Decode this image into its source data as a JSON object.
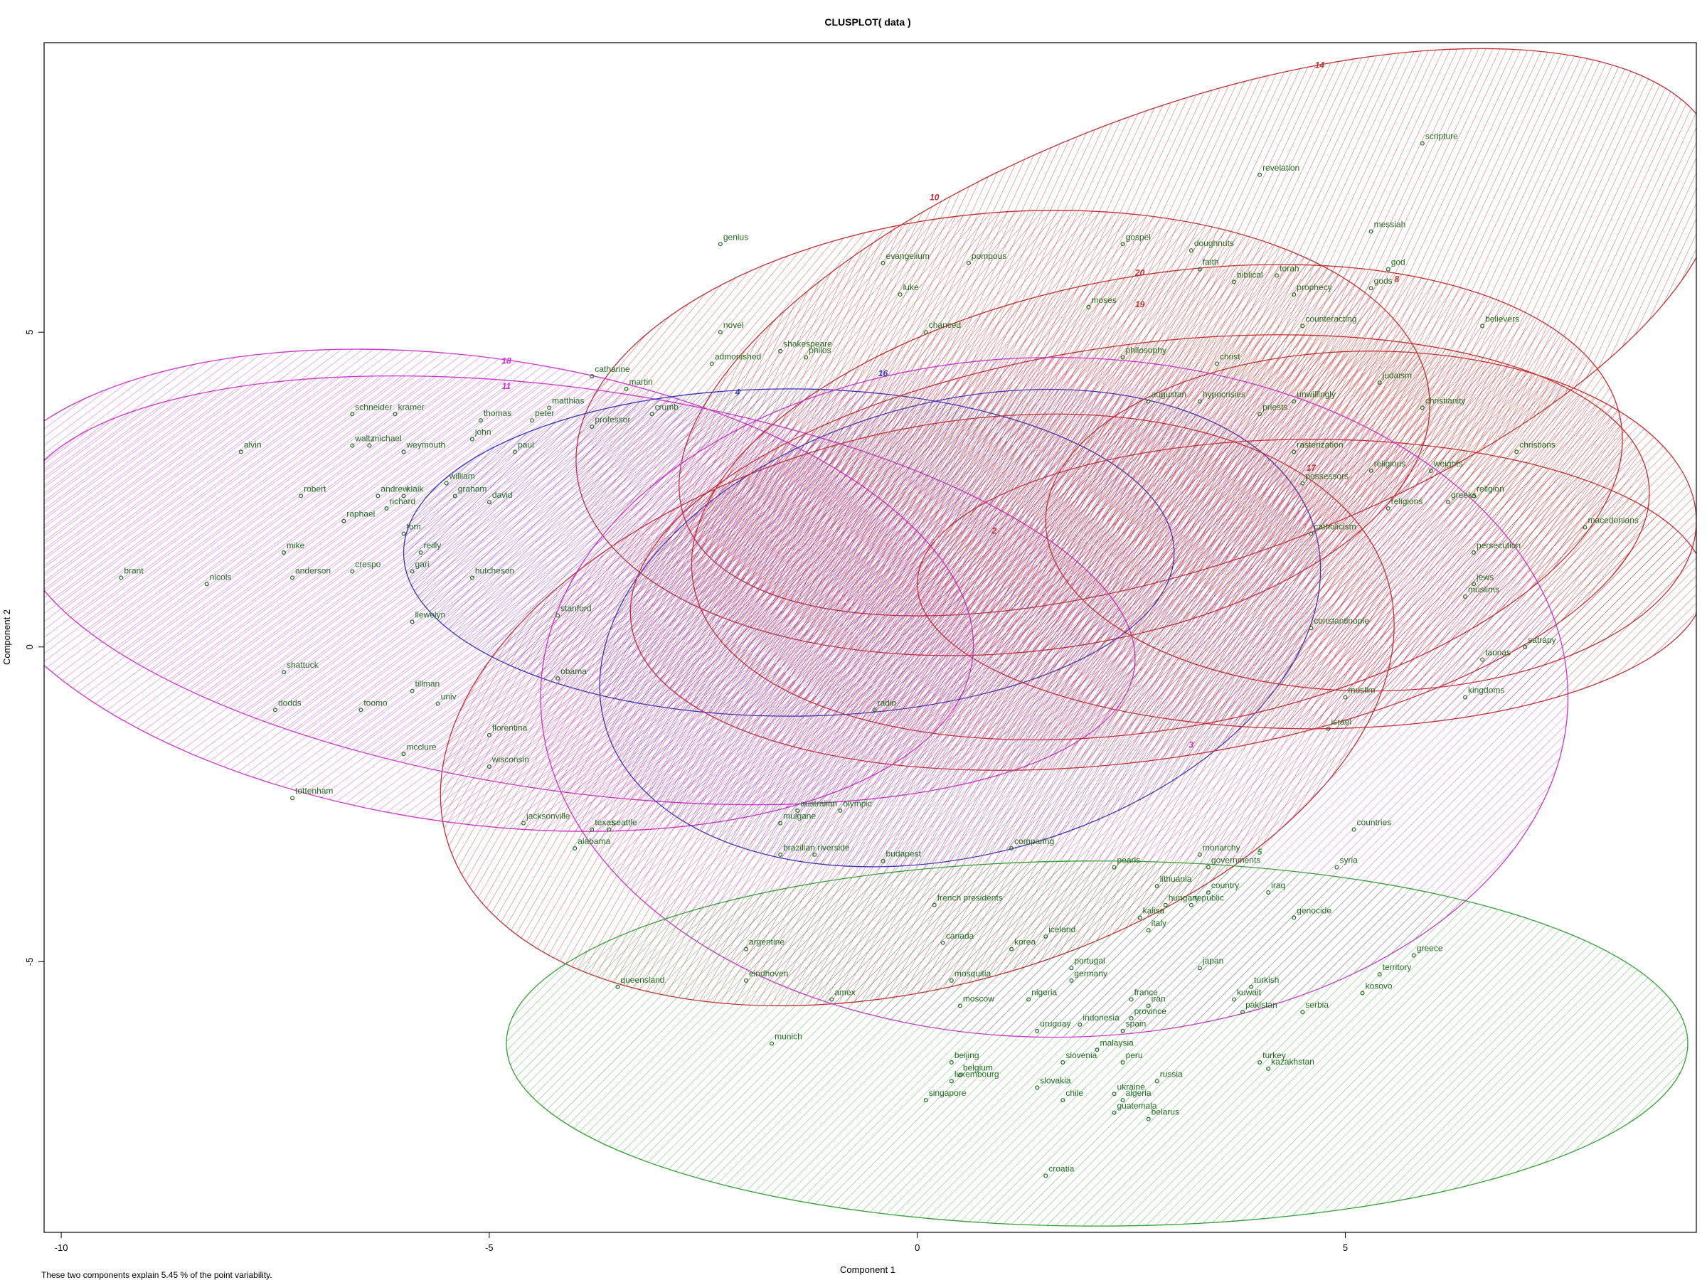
{
  "chart_data": {
    "type": "scatter",
    "title": "CLUSPLOT( data )",
    "xlabel": "Component 1",
    "ylabel": "Component 2",
    "footnote": "These two components explain 5.45 % of the point variability.",
    "xlim": [
      -10.2,
      9.1
    ],
    "ylim": [
      -9.3,
      9.6
    ],
    "xticks": [
      -10,
      -5,
      0,
      5
    ],
    "yticks": [
      -5,
      0,
      5
    ],
    "grid": false,
    "legend": "none",
    "colors": {
      "point": "#1f6b1f",
      "magenta": "#cc33cc",
      "red": "#c03030",
      "blue": "#3333bb",
      "green": "#33a033"
    },
    "clusters": [
      {
        "label": "14",
        "color": "#c03030",
        "cx": 3.3,
        "cy": 5.0,
        "rx": 6.4,
        "ry": 3.6,
        "angle": 20,
        "label_x": 4.7,
        "label_y": 9.2
      },
      {
        "label": "10",
        "color": "#c03030",
        "cx": 1.0,
        "cy": 3.4,
        "rx": 5.0,
        "ry": 3.5,
        "angle": 5,
        "label_x": 0.2,
        "label_y": 7.1
      },
      {
        "label": "18",
        "color": "#cc33cc",
        "cx": -5.2,
        "cy": 0.9,
        "rx": 5.9,
        "ry": 3.7,
        "angle": -8,
        "label_x": -4.8,
        "label_y": 4.5
      },
      {
        "label": "11",
        "color": "#cc33cc",
        "cx": -4.0,
        "cy": 0.9,
        "rx": 6.6,
        "ry": 3.2,
        "angle": -8,
        "label_x": -4.8,
        "label_y": 4.1
      },
      {
        "label": "4",
        "color": "#3333bb",
        "cx": -1.5,
        "cy": 1.5,
        "rx": 4.5,
        "ry": 2.6,
        "angle": 0,
        "label_x": -2.1,
        "label_y": 4.0
      },
      {
        "label": "16",
        "color": "#3333bb",
        "cx": 0.5,
        "cy": 0.3,
        "rx": 4.3,
        "ry": 3.6,
        "angle": 15,
        "label_x": -0.4,
        "label_y": 4.3
      },
      {
        "label": "20",
        "color": "#c03030",
        "cx": 2.8,
        "cy": 2.3,
        "rx": 5.5,
        "ry": 3.6,
        "angle": 10,
        "label_x": 2.6,
        "label_y": 5.9
      },
      {
        "label": "19",
        "color": "#c03030",
        "cx": 2.6,
        "cy": 1.5,
        "rx": 6.0,
        "ry": 3.3,
        "angle": 8,
        "label_x": 2.6,
        "label_y": 5.4
      },
      {
        "label": "8",
        "color": "#c03030",
        "cx": 5.3,
        "cy": 2.0,
        "rx": 3.8,
        "ry": 2.7,
        "angle": 0,
        "label_x": 5.6,
        "label_y": 5.8
      },
      {
        "label": "17",
        "color": "#c03030",
        "cx": 4.6,
        "cy": 1.0,
        "rx": 4.6,
        "ry": 2.3,
        "angle": 0,
        "label_x": 4.6,
        "label_y": 2.8
      },
      {
        "label": "2",
        "color": "#c03030",
        "cx": 0.0,
        "cy": -1.0,
        "rx": 5.7,
        "ry": 4.4,
        "angle": 15,
        "label_x": 0.9,
        "label_y": 1.8
      },
      {
        "label": "3",
        "color": "#cc33cc",
        "cx": 1.6,
        "cy": -0.8,
        "rx": 6.0,
        "ry": 5.4,
        "angle": 0,
        "label_x": 3.2,
        "label_y": -1.6
      },
      {
        "label": "5",
        "color": "#33a033",
        "cx": 2.1,
        "cy": -6.3,
        "rx": 6.9,
        "ry": 2.9,
        "angle": 0,
        "label_x": 4.0,
        "label_y": -3.3
      }
    ],
    "points": [
      {
        "label": "scripture",
        "x": 5.9,
        "y": 8.0
      },
      {
        "label": "revelation",
        "x": 4.0,
        "y": 7.5
      },
      {
        "label": "messiah",
        "x": 5.3,
        "y": 6.6
      },
      {
        "label": "god",
        "x": 5.5,
        "y": 6.0
      },
      {
        "label": "gods",
        "x": 5.3,
        "y": 5.7
      },
      {
        "label": "torah",
        "x": 4.2,
        "y": 5.9
      },
      {
        "label": "prophecy",
        "x": 4.4,
        "y": 5.6
      },
      {
        "label": "doughnuts",
        "x": 3.2,
        "y": 6.3
      },
      {
        "label": "faith",
        "x": 3.3,
        "y": 6.0
      },
      {
        "label": "biblical",
        "x": 3.7,
        "y": 5.8
      },
      {
        "label": "gospel",
        "x": 2.4,
        "y": 6.4
      },
      {
        "label": "genius",
        "x": -2.3,
        "y": 6.4
      },
      {
        "label": "evangelium",
        "x": -0.4,
        "y": 6.1
      },
      {
        "label": "pompous",
        "x": 0.6,
        "y": 6.1
      },
      {
        "label": "luke",
        "x": -0.2,
        "y": 5.6
      },
      {
        "label": "moses",
        "x": 2.0,
        "y": 5.4
      },
      {
        "label": "believers",
        "x": 6.6,
        "y": 5.1
      },
      {
        "label": "novel",
        "x": -2.3,
        "y": 5.0
      },
      {
        "label": "shakespeare",
        "x": -1.6,
        "y": 4.7
      },
      {
        "label": "admonished",
        "x": -2.4,
        "y": 4.5
      },
      {
        "label": "philos",
        "x": -1.3,
        "y": 4.6
      },
      {
        "label": "chanced",
        "x": 0.1,
        "y": 5.0
      },
      {
        "label": "counteracting",
        "x": 4.5,
        "y": 5.1
      },
      {
        "label": "christ",
        "x": 3.5,
        "y": 4.5
      },
      {
        "label": "philosophy",
        "x": 2.4,
        "y": 4.6
      },
      {
        "label": "judaism",
        "x": 5.4,
        "y": 4.2
      },
      {
        "label": "christianity",
        "x": 5.9,
        "y": 3.8
      },
      {
        "label": "unwillingly",
        "x": 4.4,
        "y": 3.9
      },
      {
        "label": "priests",
        "x": 4.0,
        "y": 3.7
      },
      {
        "label": "hypocrisies",
        "x": 3.3,
        "y": 3.9
      },
      {
        "label": "augustan",
        "x": 2.7,
        "y": 3.9
      },
      {
        "label": "catharine",
        "x": -3.8,
        "y": 4.3
      },
      {
        "label": "martin",
        "x": -3.4,
        "y": 4.1
      },
      {
        "label": "matthias",
        "x": -4.3,
        "y": 3.8
      },
      {
        "label": "schneider",
        "x": -6.6,
        "y": 3.7
      },
      {
        "label": "kramer",
        "x": -6.1,
        "y": 3.7
      },
      {
        "label": "thomas",
        "x": -5.1,
        "y": 3.6
      },
      {
        "label": "peter",
        "x": -4.5,
        "y": 3.6
      },
      {
        "label": "professor",
        "x": -3.8,
        "y": 3.5
      },
      {
        "label": "crumb",
        "x": -3.1,
        "y": 3.7
      },
      {
        "label": "john",
        "x": -5.2,
        "y": 3.3
      },
      {
        "label": "michael",
        "x": -6.4,
        "y": 3.2
      },
      {
        "label": "waltz",
        "x": -6.6,
        "y": 3.2
      },
      {
        "label": "weymouth",
        "x": -6.0,
        "y": 3.1
      },
      {
        "label": "alvin",
        "x": -7.9,
        "y": 3.1
      },
      {
        "label": "paul",
        "x": -4.7,
        "y": 3.1
      },
      {
        "label": "rasterization",
        "x": 4.4,
        "y": 3.1
      },
      {
        "label": "possessors",
        "x": 4.5,
        "y": 2.6
      },
      {
        "label": "religious",
        "x": 5.3,
        "y": 2.8
      },
      {
        "label": "weights",
        "x": 6.0,
        "y": 2.8
      },
      {
        "label": "christians",
        "x": 7.0,
        "y": 3.1
      },
      {
        "label": "religion",
        "x": 6.5,
        "y": 2.4
      },
      {
        "label": "greeks",
        "x": 6.2,
        "y": 2.3
      },
      {
        "label": "religions",
        "x": 5.5,
        "y": 2.2
      },
      {
        "label": "macedonians",
        "x": 7.8,
        "y": 1.9
      },
      {
        "label": "persecution",
        "x": 6.5,
        "y": 1.5
      },
      {
        "label": "jews",
        "x": 6.5,
        "y": 1.0
      },
      {
        "label": "muslims",
        "x": 6.4,
        "y": 0.8
      },
      {
        "label": "catholicism",
        "x": 4.6,
        "y": 1.8
      },
      {
        "label": "constantinople",
        "x": 4.6,
        "y": 0.3
      },
      {
        "label": "satrapy",
        "x": 7.1,
        "y": 0.0
      },
      {
        "label": "taunas",
        "x": 6.6,
        "y": -0.2
      },
      {
        "label": "kingdoms",
        "x": 6.4,
        "y": -0.8
      },
      {
        "label": "muslim",
        "x": 5.0,
        "y": -0.8
      },
      {
        "label": "israel",
        "x": 4.8,
        "y": -1.3
      },
      {
        "label": "robert",
        "x": -7.2,
        "y": 2.4
      },
      {
        "label": "andrew",
        "x": -6.3,
        "y": 2.4
      },
      {
        "label": "klaik",
        "x": -6.0,
        "y": 2.4
      },
      {
        "label": "william",
        "x": -5.5,
        "y": 2.6
      },
      {
        "label": "graham",
        "x": -5.4,
        "y": 2.4
      },
      {
        "label": "david",
        "x": -5.0,
        "y": 2.3
      },
      {
        "label": "richard",
        "x": -6.2,
        "y": 2.2
      },
      {
        "label": "raphael",
        "x": -6.7,
        "y": 2.0
      },
      {
        "label": "tom",
        "x": -6.0,
        "y": 1.8
      },
      {
        "label": "nicols",
        "x": -8.3,
        "y": 1.0
      },
      {
        "label": "brant",
        "x": -9.3,
        "y": 1.1
      },
      {
        "label": "mike",
        "x": -7.4,
        "y": 1.5
      },
      {
        "label": "anderson",
        "x": -7.3,
        "y": 1.1
      },
      {
        "label": "crespo",
        "x": -6.6,
        "y": 1.2
      },
      {
        "label": "gari",
        "x": -5.9,
        "y": 1.2
      },
      {
        "label": "reilly",
        "x": -5.8,
        "y": 1.5
      },
      {
        "label": "hutcheson",
        "x": -5.2,
        "y": 1.1
      },
      {
        "label": "llewelyn",
        "x": -5.9,
        "y": 0.4
      },
      {
        "label": "stanford",
        "x": -4.2,
        "y": 0.5
      },
      {
        "label": "shattuck",
        "x": -7.4,
        "y": -0.4
      },
      {
        "label": "dodds",
        "x": -7.5,
        "y": -1.0
      },
      {
        "label": "tillman",
        "x": -5.9,
        "y": -0.7
      },
      {
        "label": "toomo",
        "x": -6.5,
        "y": -1.0
      },
      {
        "label": "univ",
        "x": -5.6,
        "y": -0.9
      },
      {
        "label": "mcclure",
        "x": -6.0,
        "y": -1.7
      },
      {
        "label": "florentina",
        "x": -5.0,
        "y": -1.4
      },
      {
        "label": "wisconsin",
        "x": -5.0,
        "y": -1.9
      },
      {
        "label": "tottenham",
        "x": -7.3,
        "y": -2.4
      },
      {
        "label": "jacksonville",
        "x": -4.6,
        "y": -2.8
      },
      {
        "label": "queensland",
        "x": -3.5,
        "y": -5.4
      },
      {
        "label": "argentine",
        "x": -2.0,
        "y": -4.8
      },
      {
        "label": "eindhoven",
        "x": -2.0,
        "y": -5.3
      },
      {
        "label": "amex",
        "x": -1.0,
        "y": -5.6
      },
      {
        "label": "munich",
        "x": -1.7,
        "y": -6.3
      },
      {
        "label": "australian",
        "x": -1.4,
        "y": -2.6
      },
      {
        "label": "olympic",
        "x": -0.9,
        "y": -2.6
      },
      {
        "label": "riverside",
        "x": -1.2,
        "y": -3.3
      },
      {
        "label": "budapest",
        "x": -0.4,
        "y": -3.4
      },
      {
        "label": "countries",
        "x": 5.1,
        "y": -2.9
      },
      {
        "label": "syria",
        "x": 4.9,
        "y": -3.5
      },
      {
        "label": "governments",
        "x": 3.4,
        "y": -3.5
      },
      {
        "label": "lithuania",
        "x": 2.8,
        "y": -3.8
      },
      {
        "label": "hungary",
        "x": 2.9,
        "y": -4.1
      },
      {
        "label": "country",
        "x": 3.4,
        "y": -3.9
      },
      {
        "label": "republic",
        "x": 3.2,
        "y": -4.1
      },
      {
        "label": "iraq",
        "x": 4.1,
        "y": -3.9
      },
      {
        "label": "genocide",
        "x": 4.4,
        "y": -4.3
      },
      {
        "label": "greece",
        "x": 5.8,
        "y": -4.9
      },
      {
        "label": "territory",
        "x": 5.4,
        "y": -5.2
      },
      {
        "label": "kosovo",
        "x": 5.2,
        "y": -5.5
      },
      {
        "label": "canada",
        "x": 0.3,
        "y": -4.7
      },
      {
        "label": "korea",
        "x": 1.1,
        "y": -4.8
      },
      {
        "label": "iceland",
        "x": 1.5,
        "y": -4.6
      },
      {
        "label": "germany",
        "x": 1.8,
        "y": -5.3
      },
      {
        "label": "portugal",
        "x": 1.8,
        "y": -5.1
      },
      {
        "label": "mosquitia",
        "x": 0.4,
        "y": -5.3
      },
      {
        "label": "nigeria",
        "x": 1.3,
        "y": -5.6
      },
      {
        "label": "moscow",
        "x": 0.5,
        "y": -5.7
      },
      {
        "label": "japan",
        "x": 3.3,
        "y": -5.1
      },
      {
        "label": "turkish",
        "x": 3.9,
        "y": -5.4
      },
      {
        "label": "kuwait",
        "x": 3.7,
        "y": -5.6
      },
      {
        "label": "france",
        "x": 2.5,
        "y": -5.6
      },
      {
        "label": "iran",
        "x": 2.7,
        "y": -5.7
      },
      {
        "label": "pakistan",
        "x": 3.8,
        "y": -5.8
      },
      {
        "label": "serbia",
        "x": 4.5,
        "y": -5.8
      },
      {
        "label": "province",
        "x": 2.5,
        "y": -5.9
      },
      {
        "label": "spain",
        "x": 2.4,
        "y": -6.1
      },
      {
        "label": "indonesia",
        "x": 1.9,
        "y": -6.0
      },
      {
        "label": "uruguay",
        "x": 1.4,
        "y": -6.1
      },
      {
        "label": "malaysia",
        "x": 2.1,
        "y": -6.4
      },
      {
        "label": "slovenia",
        "x": 1.7,
        "y": -6.6
      },
      {
        "label": "peru",
        "x": 2.4,
        "y": -6.6
      },
      {
        "label": "beijing",
        "x": 0.4,
        "y": -6.6
      },
      {
        "label": "belgium",
        "x": 0.5,
        "y": -6.8
      },
      {
        "label": "luxembourg",
        "x": 0.4,
        "y": -6.9
      },
      {
        "label": "turkey",
        "x": 4.0,
        "y": -6.6
      },
      {
        "label": "kazakhstan",
        "x": 4.1,
        "y": -6.7
      },
      {
        "label": "russia",
        "x": 2.8,
        "y": -6.9
      },
      {
        "label": "slovakia",
        "x": 1.4,
        "y": -7.0
      },
      {
        "label": "ukraine",
        "x": 2.3,
        "y": -7.1
      },
      {
        "label": "algeria",
        "x": 2.4,
        "y": -7.2
      },
      {
        "label": "chile",
        "x": 1.7,
        "y": -7.2
      },
      {
        "label": "singapore",
        "x": 0.1,
        "y": -7.2
      },
      {
        "label": "guatemala",
        "x": 2.3,
        "y": -7.4
      },
      {
        "label": "belarus",
        "x": 2.7,
        "y": -7.5
      },
      {
        "label": "croatia",
        "x": 1.5,
        "y": -8.4
      },
      {
        "label": "texas",
        "x": -3.8,
        "y": -2.9
      },
      {
        "label": "seattle",
        "x": -3.6,
        "y": -2.9
      },
      {
        "label": "alabama",
        "x": -4.0,
        "y": -3.2
      },
      {
        "label": "obama",
        "x": -4.2,
        "y": -0.5
      },
      {
        "label": "mulgane",
        "x": -1.6,
        "y": -2.8
      },
      {
        "label": "brazilian",
        "x": -1.6,
        "y": -3.3
      },
      {
        "label": "radio",
        "x": -0.5,
        "y": -1.0
      },
      {
        "label": "comparing",
        "x": 1.1,
        "y": -3.2
      },
      {
        "label": "pearls",
        "x": 2.3,
        "y": -3.5
      },
      {
        "label": "monarchy",
        "x": 3.3,
        "y": -3.3
      },
      {
        "label": "kalisa",
        "x": 2.6,
        "y": -4.3
      },
      {
        "label": "italy",
        "x": 2.7,
        "y": -4.5
      },
      {
        "label": "french presidents",
        "x": 0.2,
        "y": -4.1
      }
    ]
  }
}
